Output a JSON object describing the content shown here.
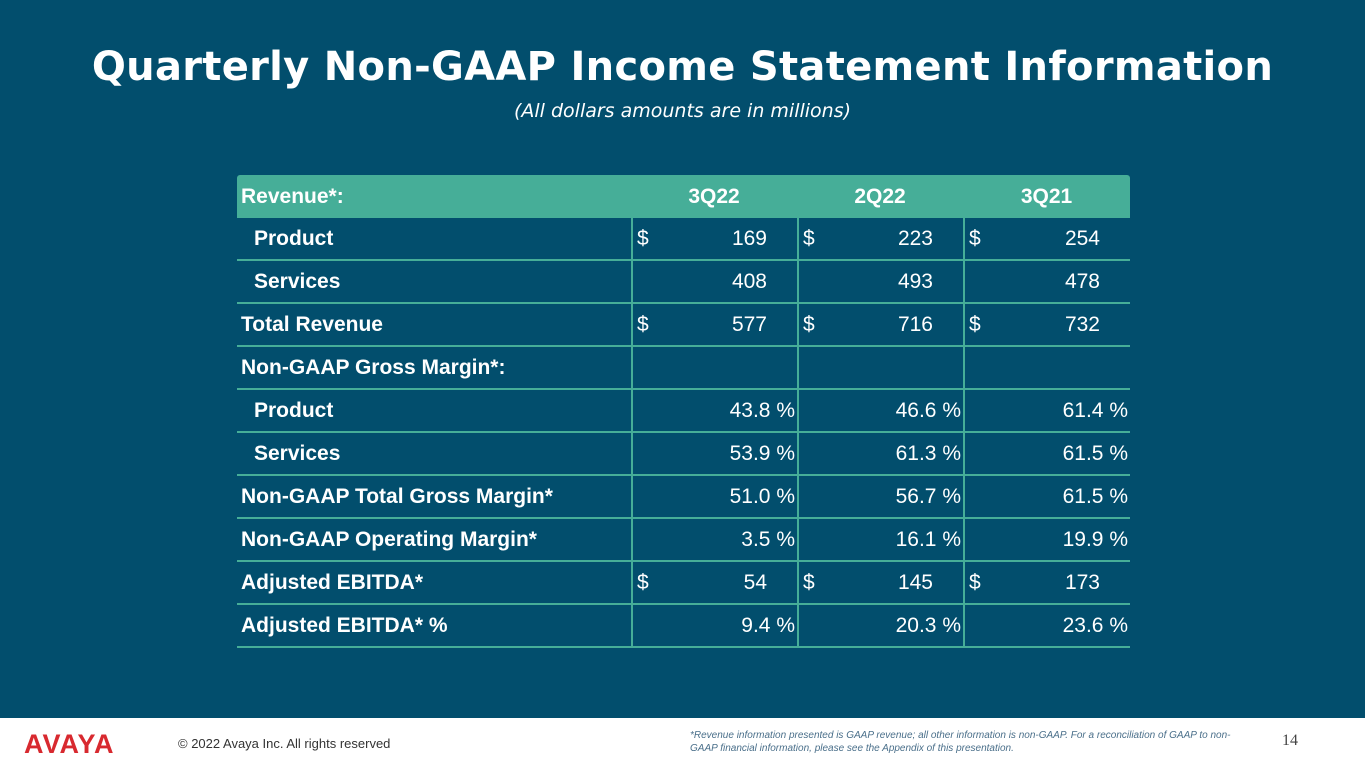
{
  "title": "Quarterly Non-GAAP Income Statement Information",
  "subtitle": "(All dollars amounts are in millions)",
  "table": {
    "header": [
      "Revenue*:",
      "3Q22",
      "2Q22",
      "3Q21"
    ],
    "rows": [
      {
        "label": "Product",
        "indent": true,
        "dollar": true,
        "pct": false,
        "values": [
          "169",
          "223",
          "254"
        ]
      },
      {
        "label": "Services",
        "indent": true,
        "dollar": false,
        "pct": false,
        "values": [
          "408",
          "493",
          "478"
        ]
      },
      {
        "label": "Total Revenue",
        "indent": false,
        "dollar": true,
        "pct": false,
        "values": [
          "577",
          "716",
          "732"
        ]
      },
      {
        "label": "Non-GAAP Gross Margin*:",
        "indent": false,
        "dollar": false,
        "pct": false,
        "values": [
          "",
          "",
          ""
        ]
      },
      {
        "label": "Product",
        "indent": true,
        "dollar": false,
        "pct": true,
        "values": [
          "43.8 %",
          "46.6 %",
          "61.4 %"
        ]
      },
      {
        "label": "Services",
        "indent": true,
        "dollar": false,
        "pct": true,
        "values": [
          "53.9 %",
          "61.3 %",
          "61.5 %"
        ]
      },
      {
        "label": "Non-GAAP Total Gross Margin*",
        "indent": false,
        "dollar": false,
        "pct": true,
        "values": [
          "51.0 %",
          "56.7 %",
          "61.5 %"
        ]
      },
      {
        "label": "Non-GAAP Operating Margin*",
        "indent": false,
        "dollar": false,
        "pct": true,
        "values": [
          "3.5 %",
          "16.1 %",
          "19.9 %"
        ]
      },
      {
        "label": "Adjusted EBITDA*",
        "indent": false,
        "dollar": true,
        "pct": false,
        "values": [
          "54",
          "145",
          "173"
        ]
      },
      {
        "label": "Adjusted EBITDA* %",
        "indent": false,
        "dollar": false,
        "pct": true,
        "values": [
          "9.4 %",
          "20.3 %",
          "23.6 %"
        ]
      }
    ],
    "dollar_sign": "$"
  },
  "footer": {
    "logo_text": "AVAYA",
    "copyright": "© 2022 Avaya Inc. All rights reserved",
    "note": "*Revenue information presented is GAAP revenue; all other information is non-GAAP. For a reconciliation of GAAP to non-GAAP financial information, please see the Appendix of this presentation.",
    "page_number": "14"
  },
  "colors": {
    "background": "#024e6d",
    "table_accent": "#46ae98",
    "brand_red": "#d8292f"
  }
}
